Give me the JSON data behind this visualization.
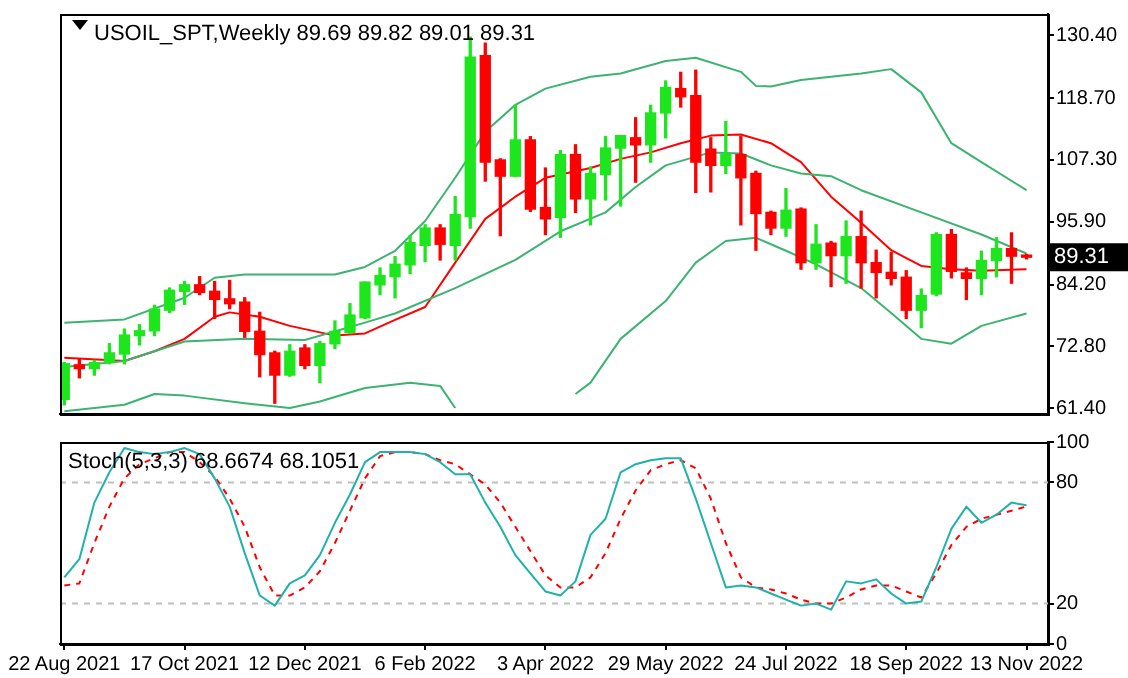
{
  "chart_data": [
    {
      "type": "candlestick",
      "title": "USOIL_SPT,Weekly 89.69 89.82 89.01 89.31",
      "x": [
        "2021-08-22",
        "2021-08-29",
        "2021-09-05",
        "2021-09-12",
        "2021-09-19",
        "2021-09-26",
        "2021-10-03",
        "2021-10-10",
        "2021-10-17",
        "2021-10-24",
        "2021-10-31",
        "2021-11-07",
        "2021-11-14",
        "2021-11-21",
        "2021-11-28",
        "2021-12-05",
        "2021-12-12",
        "2021-12-19",
        "2021-12-26",
        "2022-01-02",
        "2022-01-09",
        "2022-01-16",
        "2022-01-23",
        "2022-01-30",
        "2022-02-06",
        "2022-02-13",
        "2022-02-20",
        "2022-02-27",
        "2022-03-06",
        "2022-03-13",
        "2022-03-20",
        "2022-03-27",
        "2022-04-03",
        "2022-04-10",
        "2022-04-17",
        "2022-04-24",
        "2022-05-01",
        "2022-05-08",
        "2022-05-15",
        "2022-05-22",
        "2022-05-29",
        "2022-06-05",
        "2022-06-12",
        "2022-06-19",
        "2022-06-26",
        "2022-07-03",
        "2022-07-10",
        "2022-07-17",
        "2022-07-24",
        "2022-07-31",
        "2022-08-07",
        "2022-08-14",
        "2022-08-21",
        "2022-08-28",
        "2022-09-04",
        "2022-09-11",
        "2022-09-18",
        "2022-09-25",
        "2022-10-02",
        "2022-10-09",
        "2022-10-16",
        "2022-10-23",
        "2022-10-30",
        "2022-11-06",
        "2022-11-13"
      ],
      "ohlc": [
        [
          63.0,
          69.8,
          62.0,
          69.6
        ],
        [
          69.4,
          70.5,
          67.0,
          68.7
        ],
        [
          68.7,
          70.2,
          67.5,
          69.8
        ],
        [
          69.8,
          73.3,
          69.6,
          71.6
        ],
        [
          71.4,
          76.0,
          69.6,
          74.9
        ],
        [
          74.8,
          76.8,
          73.1,
          75.7
        ],
        [
          75.7,
          80.4,
          74.8,
          79.7
        ],
        [
          79.5,
          83.6,
          79.1,
          83.2
        ],
        [
          83.0,
          84.8,
          80.6,
          84.2
        ],
        [
          84.2,
          85.7,
          82.4,
          82.8
        ],
        [
          83.0,
          84.8,
          78.0,
          81.5
        ],
        [
          81.6,
          85.0,
          79.8,
          80.7
        ],
        [
          81.0,
          81.8,
          74.5,
          75.6
        ],
        [
          75.6,
          79.1,
          67.2,
          71.3
        ],
        [
          71.6,
          71.9,
          62.3,
          67.5
        ],
        [
          67.5,
          73.1,
          67.3,
          71.9
        ],
        [
          72.5,
          73.1,
          68.7,
          69.3
        ],
        [
          69.3,
          73.7,
          66.1,
          73.3
        ],
        [
          73.3,
          77.5,
          72.4,
          75.6
        ],
        [
          75.4,
          80.7,
          75.2,
          78.6
        ],
        [
          78.1,
          84.7,
          78.0,
          84.7
        ],
        [
          84.2,
          87.3,
          82.4,
          85.9
        ],
        [
          85.7,
          89.4,
          81.8,
          88.0
        ],
        [
          87.9,
          93.3,
          86.3,
          92.0
        ],
        [
          91.5,
          95.3,
          88.5,
          94.7
        ],
        [
          94.7,
          95.3,
          88.8,
          91.7
        ],
        [
          91.5,
          100.5,
          88.8,
          97.2
        ],
        [
          96.8,
          130.0,
          94.7,
          126.3
        ],
        [
          126.6,
          128.9,
          103.4,
          106.9
        ],
        [
          107.3,
          107.5,
          93.3,
          104.3
        ],
        [
          104.3,
          117.4,
          104.3,
          111.0
        ],
        [
          111.0,
          111.6,
          97.8,
          98.2
        ],
        [
          98.5,
          105.8,
          93.5,
          96.4
        ],
        [
          96.7,
          109.0,
          93.0,
          108.3
        ],
        [
          108.3,
          110.1,
          97.6,
          100.1
        ],
        [
          100.1,
          106.0,
          95.3,
          104.8
        ],
        [
          104.6,
          111.6,
          99.9,
          109.5
        ],
        [
          109.5,
          111.8,
          98.8,
          111.8
        ],
        [
          111.4,
          115.1,
          103.2,
          110.1
        ],
        [
          110.1,
          117.4,
          106.9,
          116.0
        ],
        [
          116.0,
          121.9,
          111.4,
          120.7
        ],
        [
          120.5,
          123.5,
          117.1,
          119.0
        ],
        [
          119.2,
          123.9,
          101.3,
          106.9
        ],
        [
          109.3,
          111.4,
          101.4,
          106.3
        ],
        [
          106.3,
          114.4,
          104.8,
          108.3
        ],
        [
          108.3,
          111.6,
          95.3,
          104.0
        ],
        [
          104.8,
          105.2,
          90.6,
          97.4
        ],
        [
          97.6,
          97.8,
          93.5,
          94.7
        ],
        [
          94.7,
          102.0,
          93.2,
          98.0
        ],
        [
          98.2,
          98.4,
          87.1,
          88.3
        ],
        [
          88.3,
          95.3,
          87.1,
          91.7
        ],
        [
          91.9,
          92.2,
          83.9,
          89.6
        ],
        [
          89.6,
          96.0,
          84.5,
          93.1
        ],
        [
          93.1,
          97.8,
          83.6,
          88.3
        ],
        [
          88.3,
          90.6,
          81.8,
          86.5
        ],
        [
          86.5,
          90.2,
          84.2,
          85.4
        ],
        [
          85.6,
          86.8,
          78.0,
          79.5
        ],
        [
          79.5,
          83.4,
          76.3,
          82.2
        ],
        [
          82.5,
          93.8,
          82.2,
          93.5
        ],
        [
          93.5,
          94.4,
          85.5,
          86.7
        ],
        [
          86.4,
          87.3,
          81.5,
          85.4
        ],
        [
          85.4,
          90.4,
          82.4,
          88.7
        ],
        [
          88.7,
          92.9,
          85.7,
          90.9
        ],
        [
          90.9,
          93.8,
          84.5,
          89.5
        ],
        [
          89.69,
          89.82,
          89.01,
          89.31
        ]
      ],
      "colors": [
        "#1ee61e",
        "#ff0000",
        "#1ee61e",
        "#1ee61e",
        "#1ee61e",
        "#1ee61e",
        "#1ee61e",
        "#1ee61e",
        "#1ee61e",
        "#ff0000",
        "#ff0000",
        "#ff0000",
        "#ff0000",
        "#ff0000",
        "#ff0000",
        "#1ee61e",
        "#ff0000",
        "#1ee61e",
        "#1ee61e",
        "#1ee61e",
        "#1ee61e",
        "#1ee61e",
        "#1ee61e",
        "#1ee61e",
        "#1ee61e",
        "#ff0000",
        "#1ee61e",
        "#1ee61e",
        "#ff0000",
        "#ff0000",
        "#1ee61e",
        "#ff0000",
        "#ff0000",
        "#1ee61e",
        "#ff0000",
        "#1ee61e",
        "#1ee61e",
        "#1ee61e",
        "#ff0000",
        "#1ee61e",
        "#1ee61e",
        "#ff0000",
        "#ff0000",
        "#ff0000",
        "#1ee61e",
        "#ff0000",
        "#ff0000",
        "#ff0000",
        "#1ee61e",
        "#ff0000",
        "#1ee61e",
        "#ff0000",
        "#1ee61e",
        "#ff0000",
        "#ff0000",
        "#ff0000",
        "#ff0000",
        "#1ee61e",
        "#1ee61e",
        "#ff0000",
        "#ff0000",
        "#1ee61e",
        "#1ee61e",
        "#ff0000",
        "#ff0000"
      ],
      "series": [
        {
          "type": "line",
          "color": "#3cb371",
          "x": [
            "2021-08-22",
            "2021-09-19",
            "2021-10-17",
            "2021-10-31",
            "2021-11-14",
            "2021-12-26",
            "2022-01-09",
            "2022-01-23",
            "2022-02-06",
            "2022-02-20",
            "2022-03-06",
            "2022-03-20",
            "2022-04-03",
            "2022-04-24",
            "2022-05-08",
            "2022-05-29",
            "2022-06-12",
            "2022-07-03",
            "2022-07-10",
            "2022-07-17",
            "2022-07-31",
            "2022-08-28",
            "2022-09-11",
            "2022-09-25",
            "2022-10-09",
            "2022-10-23",
            "2022-11-13"
          ],
          "values": [
            77.2,
            77.8,
            81.8,
            85.5,
            86.1,
            86.1,
            87.5,
            90.5,
            96.0,
            104.0,
            112.5,
            117.5,
            120.5,
            122.7,
            123.3,
            125.6,
            126.2,
            123.6,
            121.0,
            120.9,
            122.1,
            123.3,
            124.1,
            119.8,
            110.4,
            106.9,
            101.7
          ]
        },
        {
          "type": "line",
          "color": "#3cb371",
          "x": [
            "2021-08-22",
            "2021-09-19",
            "2021-10-17",
            "2021-11-14",
            "2021-12-12",
            "2022-01-09",
            "2022-01-23",
            "2022-02-20",
            "2022-03-20",
            "2022-04-10",
            "2022-05-01",
            "2022-05-15",
            "2022-05-29",
            "2022-06-19",
            "2022-07-03",
            "2022-07-17",
            "2022-07-31",
            "2022-08-14",
            "2022-08-28",
            "2022-09-25",
            "2022-10-23",
            "2022-11-13"
          ],
          "values": [
            69.0,
            70.1,
            73.7,
            74.2,
            74.0,
            77.2,
            78.9,
            83.6,
            88.8,
            94.1,
            97.6,
            102.3,
            106.3,
            108.7,
            108.5,
            106.3,
            104.8,
            104.3,
            101.7,
            97.6,
            93.5,
            90.0
          ]
        },
        {
          "type": "line",
          "color": "#3cb371",
          "x": [
            "2021-08-22",
            "2021-09-19",
            "2021-10-03",
            "2021-10-17",
            "2021-11-14",
            "2021-12-05",
            "2021-12-19",
            "2022-01-09",
            "2022-01-30",
            "2022-02-13",
            "2022-02-20",
            "2022-03-20",
            "2022-04-17",
            "2022-04-24",
            "2022-05-08",
            "2022-05-29",
            "2022-06-12",
            "2022-06-26",
            "2022-07-10",
            "2022-07-24",
            "2022-08-07",
            "2022-08-28",
            "2022-09-11",
            "2022-09-25",
            "2022-10-09",
            "2022-10-23",
            "2022-11-13"
          ],
          "values": [
            60.8,
            62.0,
            64.0,
            63.7,
            62.3,
            61.4,
            62.6,
            65.1,
            66.1,
            65.5,
            61.4,
            null,
            64.0,
            66.1,
            74.2,
            81.2,
            88.3,
            92.3,
            92.9,
            90.5,
            88.0,
            83.6,
            79.0,
            74.2,
            73.3,
            76.6,
            78.9
          ]
        },
        {
          "type": "line",
          "color": "#ff0000",
          "x": [
            "2021-08-22",
            "2021-09-19",
            "2021-10-03",
            "2021-10-17",
            "2021-10-31",
            "2021-11-07",
            "2021-11-21",
            "2021-12-05",
            "2021-12-19",
            "2021-12-26",
            "2022-01-09",
            "2022-01-23",
            "2022-02-06",
            "2022-02-20",
            "2022-03-06",
            "2022-03-20",
            "2022-04-03",
            "2022-04-24",
            "2022-05-08",
            "2022-05-22",
            "2022-06-05",
            "2022-06-19",
            "2022-07-03",
            "2022-07-17",
            "2022-07-31",
            "2022-08-14",
            "2022-08-28",
            "2022-09-11",
            "2022-09-25",
            "2022-10-09",
            "2022-10-23",
            "2022-11-13"
          ],
          "values": [
            70.7,
            70.1,
            71.9,
            74.2,
            78.3,
            79.1,
            78.3,
            76.6,
            75.4,
            74.8,
            75.2,
            77.7,
            80.1,
            88.3,
            96.4,
            100.5,
            104.0,
            105.8,
            107.5,
            108.7,
            110.4,
            111.8,
            112.0,
            110.4,
            106.9,
            100.5,
            95.7,
            90.6,
            87.7,
            87.1,
            86.8,
            87.1
          ]
        }
      ],
      "xlim": [
        "2021-08-20",
        "2022-11-23"
      ],
      "ylim": [
        60.3,
        134.3
      ],
      "yticks": [
        {
          "value": 61.4,
          "label": "61.40"
        },
        {
          "value": 72.8,
          "label": "72.80"
        },
        {
          "value": 84.2,
          "label": "84.20"
        },
        {
          "value": 95.9,
          "label": "95.90"
        },
        {
          "value": 107.3,
          "label": "107.30"
        },
        {
          "value": 118.7,
          "label": "118.70"
        },
        {
          "value": 130.4,
          "label": "130.40"
        }
      ],
      "annotations": [
        "89.31"
      ],
      "tick_labels": "y"
    },
    {
      "type": "line",
      "title": "Stoch(5,3,3) 68.6674 68.1051",
      "x": [
        "2021-08-22",
        "2021-08-29",
        "2021-09-05",
        "2021-09-12",
        "2021-09-19",
        "2021-09-26",
        "2021-10-03",
        "2021-10-10",
        "2021-10-17",
        "2021-10-24",
        "2021-10-31",
        "2021-11-07",
        "2021-11-14",
        "2021-11-21",
        "2021-11-28",
        "2021-12-05",
        "2021-12-12",
        "2021-12-19",
        "2021-12-26",
        "2022-01-02",
        "2022-01-09",
        "2022-01-16",
        "2022-01-23",
        "2022-01-30",
        "2022-02-06",
        "2022-02-13",
        "2022-02-20",
        "2022-02-27",
        "2022-03-06",
        "2022-03-13",
        "2022-03-20",
        "2022-03-27",
        "2022-04-03",
        "2022-04-10",
        "2022-04-17",
        "2022-04-24",
        "2022-05-01",
        "2022-05-08",
        "2022-05-15",
        "2022-05-22",
        "2022-05-29",
        "2022-06-05",
        "2022-06-12",
        "2022-06-19",
        "2022-06-26",
        "2022-07-03",
        "2022-07-10",
        "2022-07-17",
        "2022-07-24",
        "2022-07-31",
        "2022-08-07",
        "2022-08-14",
        "2022-08-21",
        "2022-08-28",
        "2022-09-04",
        "2022-09-11",
        "2022-09-18",
        "2022-09-25",
        "2022-10-02",
        "2022-10-09",
        "2022-10-16",
        "2022-10-23",
        "2022-10-30",
        "2022-11-06",
        "2022-11-13"
      ],
      "series": [
        {
          "color": "#20b2aa",
          "values": [
            33,
            42,
            70,
            85,
            97,
            95,
            94,
            95,
            97,
            94,
            82,
            68,
            45,
            24,
            19,
            30,
            34,
            44,
            60,
            74,
            90,
            95,
            95,
            95,
            94,
            90,
            84,
            84,
            70,
            58,
            44,
            35,
            26,
            24,
            31,
            54,
            62,
            85,
            89,
            91,
            92,
            92,
            72,
            50,
            28,
            29,
            28,
            25,
            22,
            19,
            20,
            17,
            31,
            30,
            32,
            25,
            20,
            21,
            38,
            57,
            68,
            60,
            64,
            70,
            68.6674
          ]
        },
        {
          "color": "#ff0000",
          "line_style": "dashed",
          "values": [
            29,
            30,
            50,
            68,
            82,
            89,
            92,
            95,
            95,
            90,
            83,
            72,
            58,
            38,
            24,
            24,
            28,
            36,
            50,
            66,
            82,
            93,
            95,
            95,
            94,
            91,
            89,
            84,
            79,
            70,
            58,
            46,
            34,
            28,
            28,
            33,
            45,
            62,
            76,
            86,
            89,
            91,
            87,
            72,
            50,
            33,
            28,
            27,
            25,
            22,
            20,
            20,
            23,
            27,
            29,
            29,
            26,
            23,
            35,
            49,
            58,
            62,
            64,
            66,
            68.1051
          ]
        }
      ],
      "xlim": [
        "2021-08-20",
        "2022-11-23"
      ],
      "xticks": [
        {
          "value": "2021-08-22",
          "label": "22 Aug 2021"
        },
        {
          "value": "2021-10-17",
          "label": "17 Oct 2021"
        },
        {
          "value": "2021-12-12",
          "label": "12 Dec 2021"
        },
        {
          "value": "2022-02-06",
          "label": "6 Feb 2022"
        },
        {
          "value": "2022-04-03",
          "label": "3 Apr 2022"
        },
        {
          "value": "2022-05-29",
          "label": "29 May 2022"
        },
        {
          "value": "2022-07-24",
          "label": "24 Jul 2022"
        },
        {
          "value": "2022-09-18",
          "label": "18 Sep 2022"
        },
        {
          "value": "2022-11-13",
          "label": "13 Nov 2022"
        }
      ],
      "ylim": [
        0,
        100
      ],
      "yticks": [
        0,
        20,
        80,
        100
      ],
      "ref_lines": [
        {
          "axis": "y",
          "value": 80,
          "color": "#c0c0c0",
          "line_style": "dashed"
        },
        {
          "axis": "y",
          "value": 20,
          "color": "#c0c0c0",
          "line_style": "dashed"
        }
      ]
    }
  ]
}
